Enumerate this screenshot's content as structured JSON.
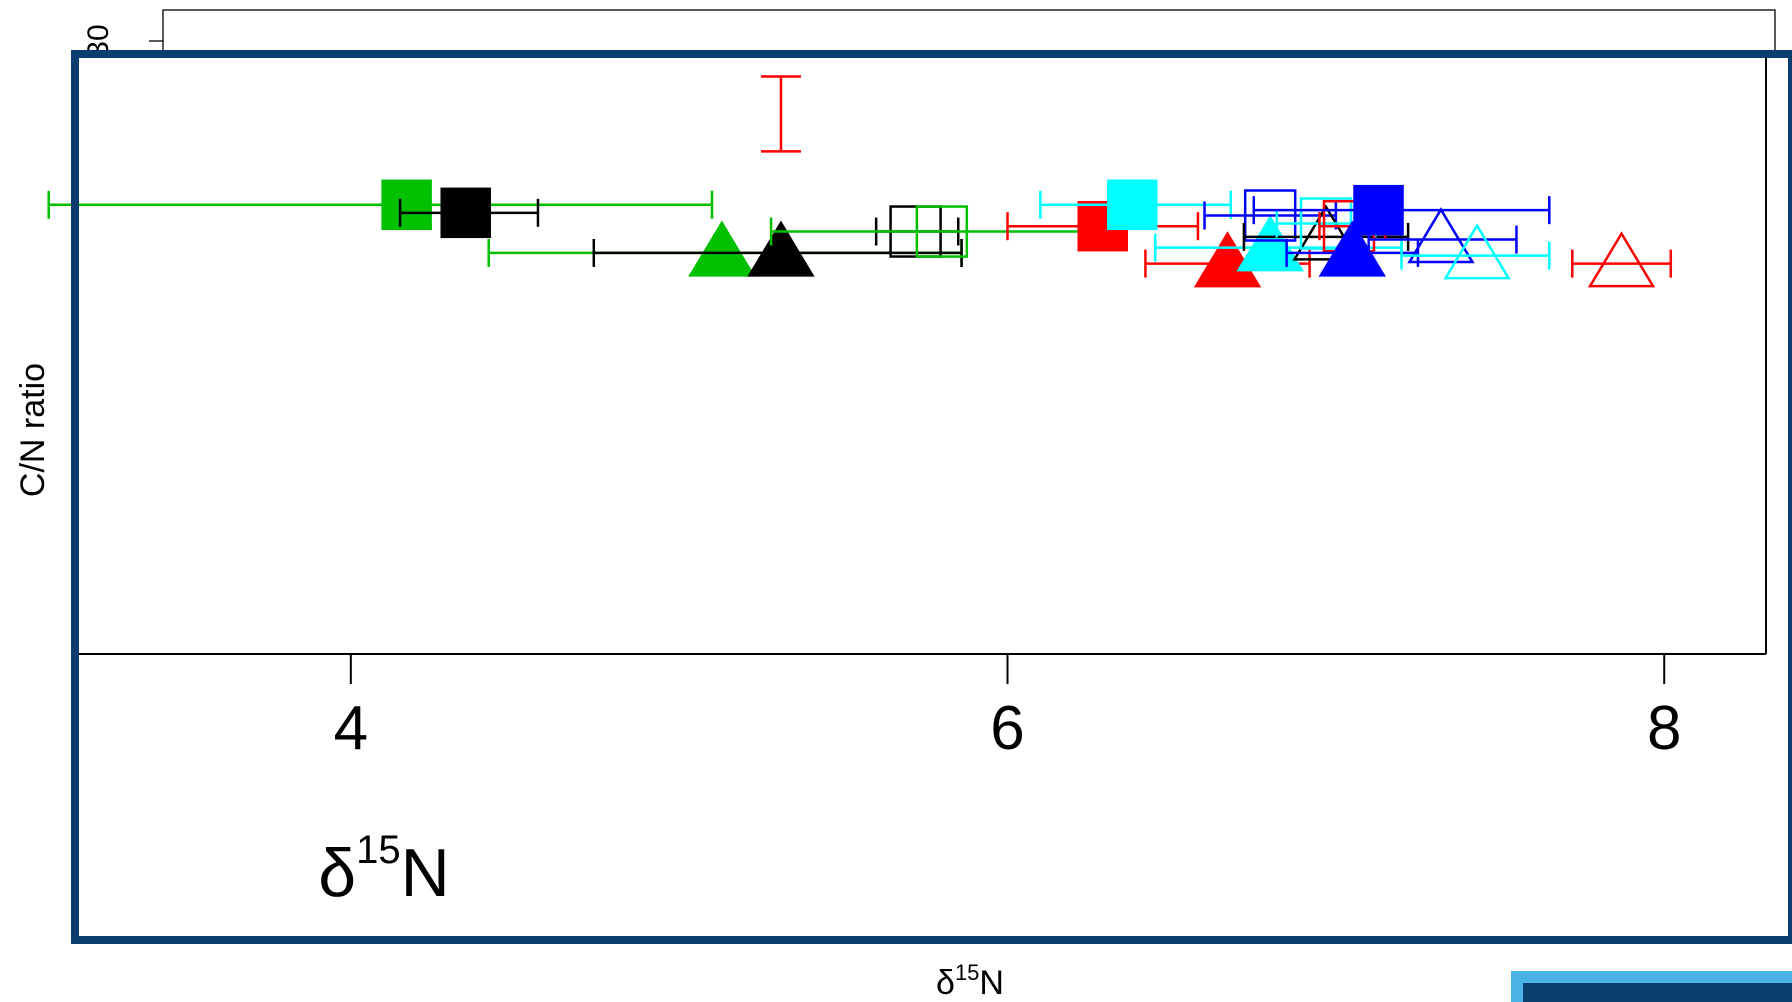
{
  "chart_data": {
    "type": "scatter",
    "xlabel_base": "δ",
    "xlabel_sup": "15",
    "xlabel_tail": "N",
    "ylabel": "C/N ratio",
    "back_tick_label": "30",
    "xlim": [
      3.16,
      8.31
    ],
    "ylim": [
      0,
      11.22
    ],
    "xticks": [
      {
        "value": 4,
        "label": "4"
      },
      {
        "value": 6,
        "label": "6"
      },
      {
        "value": 8,
        "label": "8"
      }
    ],
    "colors": {
      "green": "#00c000",
      "black": "#000000",
      "red": "#ff0000",
      "cyan": "#00ffff",
      "blue": "#0000ff",
      "frame": "#0a3d6e",
      "accent": "#4ab3e6"
    },
    "points": [
      {
        "color": "green",
        "shape": "square",
        "filled": true,
        "x": 4.17,
        "y": 8.4,
        "xerr": [
          3.08,
          5.1
        ]
      },
      {
        "color": "black",
        "shape": "square",
        "filled": true,
        "x": 4.35,
        "y": 8.25,
        "xerr": [
          4.15,
          4.57
        ]
      },
      {
        "color": "green",
        "shape": "triangle",
        "filled": true,
        "x": 5.13,
        "y": 7.5,
        "xerr": [
          4.42,
          5.86
        ]
      },
      {
        "color": "black",
        "shape": "triangle",
        "filled": true,
        "x": 5.31,
        "y": 7.5,
        "xerr": [
          4.74,
          5.86
        ]
      },
      {
        "color": "red",
        "shape": "square",
        "filled": false,
        "x": 5.31,
        "y": 10.1,
        "yerr": [
          9.4,
          10.8
        ]
      },
      {
        "color": "black",
        "shape": "square",
        "filled": false,
        "x": 5.72,
        "y": 7.9,
        "xerr": [
          5.6,
          5.85
        ]
      },
      {
        "color": "green",
        "shape": "square",
        "filled": false,
        "x": 5.8,
        "y": 7.9,
        "xerr": [
          5.28,
          6.28
        ]
      },
      {
        "color": "red",
        "shape": "square",
        "filled": true,
        "x": 6.29,
        "y": 8.0,
        "xerr": [
          6.0,
          6.58
        ]
      },
      {
        "color": "cyan",
        "shape": "square",
        "filled": true,
        "x": 6.38,
        "y": 8.4,
        "xerr": [
          6.1,
          6.68
        ]
      },
      {
        "color": "red",
        "shape": "triangle",
        "filled": true,
        "x": 6.67,
        "y": 7.3,
        "xerr": [
          6.42,
          6.92
        ]
      },
      {
        "color": "cyan",
        "shape": "triangle",
        "filled": true,
        "x": 6.8,
        "y": 7.6,
        "xerr": [
          6.45,
          7.2
        ]
      },
      {
        "color": "blue",
        "shape": "square",
        "filled": false,
        "x": 6.8,
        "y": 8.2,
        "xerr": [
          6.6,
          7.0
        ]
      },
      {
        "color": "black",
        "shape": "triangle",
        "filled": false,
        "x": 6.97,
        "y": 7.8,
        "xerr": [
          6.72,
          7.22
        ]
      },
      {
        "color": "cyan",
        "shape": "square",
        "filled": false,
        "x": 6.97,
        "y": 8.05,
        "xerr": [
          6.82,
          7.12
        ]
      },
      {
        "color": "red",
        "shape": "square",
        "filled": false,
        "x": 7.04,
        "y": 8.0,
        "xerr": [
          6.95,
          7.15
        ]
      },
      {
        "color": "blue",
        "shape": "triangle",
        "filled": true,
        "x": 7.05,
        "y": 7.5,
        "xerr": [
          6.85,
          7.25
        ]
      },
      {
        "color": "blue",
        "shape": "square",
        "filled": true,
        "x": 7.13,
        "y": 8.3,
        "xerr": [
          6.75,
          7.65
        ]
      },
      {
        "color": "blue",
        "shape": "triangle",
        "filled": false,
        "x": 7.32,
        "y": 7.75,
        "xerr": [
          7.1,
          7.55
        ]
      },
      {
        "color": "cyan",
        "shape": "triangle",
        "filled": false,
        "x": 7.43,
        "y": 7.45,
        "xerr": [
          7.2,
          7.65
        ]
      },
      {
        "color": "red",
        "shape": "triangle",
        "filled": false,
        "x": 7.87,
        "y": 7.3,
        "xerr": [
          7.72,
          8.02
        ]
      }
    ]
  }
}
